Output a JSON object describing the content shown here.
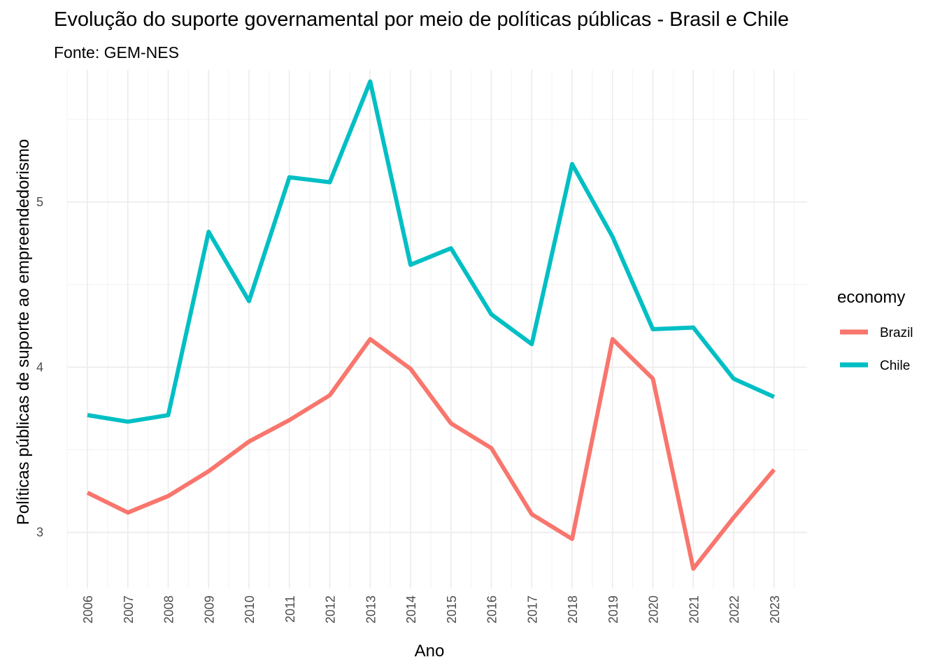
{
  "chart_data": {
    "type": "line",
    "title": "Evolução do suporte governamental por meio de políticas públicas - Brasil e Chile",
    "subtitle": "Fonte: GEM-NES",
    "xlabel": "Ano",
    "ylabel": "Políticas públicas de suporte ao empreendedorismo",
    "x": [
      2006,
      2007,
      2008,
      2009,
      2010,
      2011,
      2012,
      2013,
      2014,
      2015,
      2016,
      2017,
      2018,
      2019,
      2020,
      2021,
      2022,
      2023
    ],
    "ylim": [
      2.66,
      5.8
    ],
    "yticks": [
      3,
      4,
      5
    ],
    "grid": true,
    "legend": {
      "title": "economy",
      "placement": "right"
    },
    "series": [
      {
        "name": "Brazil",
        "color": "#F8766D",
        "values": [
          3.24,
          3.12,
          3.22,
          3.37,
          3.55,
          3.68,
          3.83,
          4.17,
          3.99,
          3.66,
          3.51,
          3.11,
          2.96,
          4.17,
          3.93,
          2.78,
          3.09,
          3.38
        ]
      },
      {
        "name": "Chile",
        "color": "#00BFC4",
        "values": [
          3.71,
          3.67,
          3.71,
          4.82,
          4.4,
          5.15,
          5.12,
          5.73,
          4.62,
          4.72,
          4.32,
          4.14,
          5.23,
          4.79,
          4.23,
          4.24,
          3.93,
          3.82
        ]
      }
    ]
  }
}
